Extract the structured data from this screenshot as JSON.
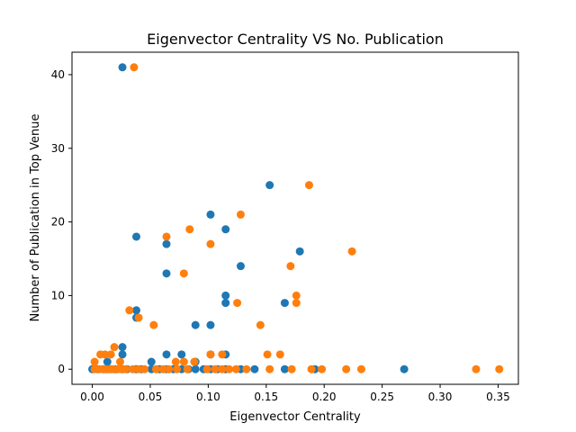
{
  "chart_data": {
    "type": "scatter",
    "title": "Eigenvector Centrality VS No. Publication",
    "xlabel": "Eigenvector Centrality",
    "ylabel": "Number of Publication in Top Venue",
    "xlim": [
      -0.0175,
      0.3675
    ],
    "ylim": [
      -2.05,
      43.05
    ],
    "xticks": [
      0.0,
      0.05,
      0.1,
      0.15,
      0.2,
      0.25,
      0.3,
      0.35
    ],
    "xtick_labels": [
      "0.00",
      "0.05",
      "0.10",
      "0.15",
      "0.20",
      "0.25",
      "0.30",
      "0.35"
    ],
    "yticks": [
      0,
      10,
      20,
      30,
      40
    ],
    "ytick_labels": [
      "0",
      "10",
      "20",
      "30",
      "40"
    ],
    "grid": false,
    "legend": null,
    "series": [
      {
        "color": "#1f77b4",
        "points": [
          [
            0.026,
            41
          ],
          [
            0.153,
            25
          ],
          [
            0.102,
            21
          ],
          [
            0.115,
            19
          ],
          [
            0.038,
            18
          ],
          [
            0.064,
            17
          ],
          [
            0.179,
            16
          ],
          [
            0.128,
            14
          ],
          [
            0.064,
            13
          ],
          [
            0.115,
            10
          ],
          [
            0.115,
            9
          ],
          [
            0.166,
            9
          ],
          [
            0.038,
            8
          ],
          [
            0.038,
            7
          ],
          [
            0.089,
            6
          ],
          [
            0.102,
            6
          ],
          [
            0.026,
            3
          ],
          [
            0.026,
            2
          ],
          [
            0.064,
            2
          ],
          [
            0.077,
            2
          ],
          [
            0.102,
            2
          ],
          [
            0.115,
            2
          ],
          [
            0.013,
            1
          ],
          [
            0.051,
            1
          ],
          [
            0.089,
            1
          ],
          [
            0.0,
            0
          ],
          [
            0.005,
            0
          ],
          [
            0.01,
            0
          ],
          [
            0.013,
            0
          ],
          [
            0.016,
            0
          ],
          [
            0.02,
            0
          ],
          [
            0.026,
            0
          ],
          [
            0.03,
            0
          ],
          [
            0.038,
            0
          ],
          [
            0.042,
            0
          ],
          [
            0.051,
            0
          ],
          [
            0.058,
            0
          ],
          [
            0.064,
            0
          ],
          [
            0.07,
            0
          ],
          [
            0.077,
            0
          ],
          [
            0.083,
            0
          ],
          [
            0.089,
            0
          ],
          [
            0.096,
            0
          ],
          [
            0.102,
            0
          ],
          [
            0.108,
            0
          ],
          [
            0.115,
            0
          ],
          [
            0.128,
            0
          ],
          [
            0.14,
            0
          ],
          [
            0.166,
            0
          ],
          [
            0.192,
            0
          ],
          [
            0.269,
            0
          ]
        ]
      },
      {
        "color": "#ff7f0e",
        "points": [
          [
            0.036,
            41
          ],
          [
            0.187,
            25
          ],
          [
            0.128,
            21
          ],
          [
            0.084,
            19
          ],
          [
            0.064,
            18
          ],
          [
            0.102,
            17
          ],
          [
            0.224,
            16
          ],
          [
            0.171,
            14
          ],
          [
            0.079,
            13
          ],
          [
            0.176,
            10
          ],
          [
            0.125,
            9
          ],
          [
            0.176,
            9
          ],
          [
            0.032,
            8
          ],
          [
            0.04,
            7
          ],
          [
            0.053,
            6
          ],
          [
            0.145,
            6
          ],
          [
            0.019,
            3
          ],
          [
            0.007,
            2
          ],
          [
            0.011,
            2
          ],
          [
            0.016,
            2
          ],
          [
            0.102,
            2
          ],
          [
            0.112,
            2
          ],
          [
            0.151,
            2
          ],
          [
            0.162,
            2
          ],
          [
            0.002,
            1
          ],
          [
            0.024,
            1
          ],
          [
            0.072,
            1
          ],
          [
            0.079,
            1
          ],
          [
            0.088,
            1
          ],
          [
            0.002,
            0
          ],
          [
            0.006,
            0
          ],
          [
            0.009,
            0
          ],
          [
            0.012,
            0
          ],
          [
            0.015,
            0
          ],
          [
            0.018,
            0
          ],
          [
            0.022,
            0
          ],
          [
            0.025,
            0
          ],
          [
            0.029,
            0
          ],
          [
            0.035,
            0
          ],
          [
            0.04,
            0
          ],
          [
            0.045,
            0
          ],
          [
            0.055,
            0
          ],
          [
            0.061,
            0
          ],
          [
            0.066,
            0
          ],
          [
            0.073,
            0
          ],
          [
            0.082,
            0
          ],
          [
            0.099,
            0
          ],
          [
            0.106,
            0
          ],
          [
            0.112,
            0
          ],
          [
            0.118,
            0
          ],
          [
            0.124,
            0
          ],
          [
            0.133,
            0
          ],
          [
            0.153,
            0
          ],
          [
            0.172,
            0
          ],
          [
            0.189,
            0
          ],
          [
            0.198,
            0
          ],
          [
            0.219,
            0
          ],
          [
            0.232,
            0
          ],
          [
            0.331,
            0
          ],
          [
            0.351,
            0
          ]
        ]
      }
    ]
  }
}
